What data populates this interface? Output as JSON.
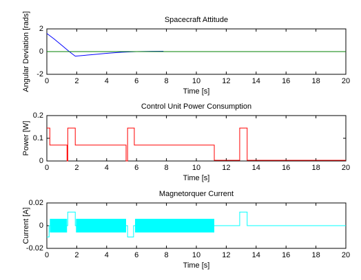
{
  "chart_data": [
    {
      "type": "line",
      "title": "Spacecraft Attitude",
      "xlabel": "Time [s]",
      "ylabel": "Angular Deviation [rads]",
      "xlim": [
        0,
        20
      ],
      "xticks": [
        0,
        2,
        4,
        6,
        8,
        10,
        12,
        14,
        16,
        18,
        20
      ],
      "ylim": [
        -2,
        2
      ],
      "yticks": [
        -2,
        0,
        2
      ],
      "series": [
        {
          "color": "#0000ff",
          "x": [
            0,
            0.5,
            1,
            1.5,
            1.9,
            2.5,
            3,
            4,
            5,
            6,
            7,
            7.8
          ],
          "values": [
            1.6,
            1.1,
            0.55,
            0,
            -0.4,
            -0.33,
            -0.27,
            -0.15,
            -0.05,
            0,
            0.02,
            0.03
          ]
        },
        {
          "color": "#008000",
          "x": [
            0,
            20
          ],
          "values": [
            0,
            0
          ]
        }
      ]
    },
    {
      "type": "line",
      "title": "Control Unit Power Consumption",
      "xlabel": "Time [s]",
      "ylabel": "Power [W]",
      "xlim": [
        0,
        20
      ],
      "xticks": [
        0,
        2,
        4,
        6,
        8,
        10,
        12,
        14,
        16,
        18,
        20
      ],
      "ylim": [
        0,
        0.2
      ],
      "yticks": [
        0,
        0.1,
        0.2
      ],
      "series": [
        {
          "color": "#ff0000",
          "x": [
            0,
            0.2,
            0.2,
            1.35,
            1.35,
            1.4,
            1.4,
            1.9,
            1.9,
            5.3,
            5.3,
            5.4,
            5.4,
            5.85,
            5.85,
            11.2,
            11.2,
            12.9,
            12.9,
            13.4,
            13.4,
            20
          ],
          "values": [
            0.145,
            0.145,
            0.07,
            0.07,
            0,
            0,
            0.145,
            0.145,
            0.07,
            0.07,
            0,
            0,
            0.145,
            0.145,
            0.07,
            0.07,
            0.003,
            0.003,
            0.145,
            0.145,
            0.003,
            0.003
          ]
        }
      ]
    },
    {
      "type": "line",
      "title": "Magnetorquer Current",
      "xlabel": "Time [s]",
      "ylabel": "Current [A]",
      "xlim": [
        0,
        20
      ],
      "xticks": [
        0,
        2,
        4,
        6,
        8,
        10,
        12,
        14,
        16,
        18,
        20
      ],
      "ylim": [
        -0.02,
        0.02
      ],
      "yticks": [
        -0.02,
        0,
        0.02
      ],
      "series": [
        {
          "color": "#00ffff",
          "x": [
            0,
            0.15,
            0.15,
            1.4,
            1.4,
            1.9,
            1.9,
            5.4,
            5.4,
            5.8,
            5.8,
            12.9,
            12.9,
            13.4,
            13.4,
            20
          ],
          "values": [
            -0.01,
            -0.01,
            0,
            0,
            0.012,
            0.012,
            0,
            0,
            -0.01,
            -0.01,
            0,
            0,
            0.012,
            0.012,
            0,
            0
          ]
        }
      ],
      "bands": [
        {
          "color": "#00ffff",
          "x0": 0.2,
          "x1": 1.35,
          "low": -0.006,
          "high": 0.006
        },
        {
          "color": "#00ffff",
          "x0": 1.95,
          "x1": 5.3,
          "low": -0.006,
          "high": 0.006
        },
        {
          "color": "#00ffff",
          "x0": 5.9,
          "x1": 11.2,
          "low": -0.006,
          "high": 0.006
        }
      ]
    }
  ]
}
